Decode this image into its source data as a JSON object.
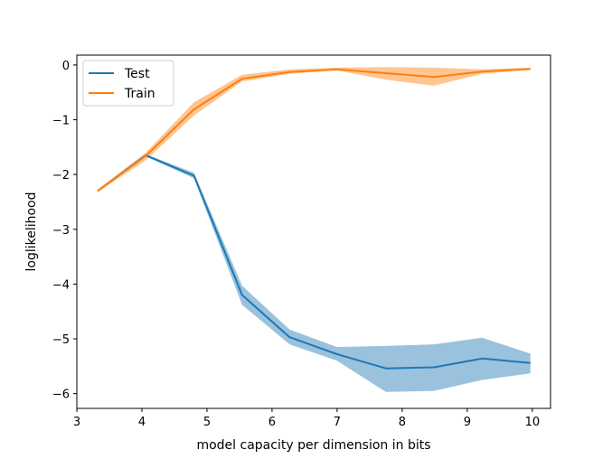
{
  "chart_data": {
    "type": "line",
    "title": "",
    "xlabel": "model capacity per dimension in bits",
    "ylabel": "loglikelihood",
    "xlim": [
      3,
      10.28
    ],
    "ylim": [
      -6.27,
      0.18
    ],
    "x_ticks": [
      3,
      4,
      5,
      6,
      7,
      8,
      9,
      10
    ],
    "y_ticks": [
      0,
      -1,
      -2,
      -3,
      -4,
      -5,
      -6
    ],
    "x_tick_labels": [
      "3",
      "4",
      "5",
      "6",
      "7",
      "8",
      "9",
      "10"
    ],
    "y_tick_labels": [
      "0",
      "−1",
      "−2",
      "−3",
      "−4",
      "−5",
      "−6"
    ],
    "grid": false,
    "legend_position": "top-left",
    "x": [
      3.32,
      4.06,
      4.8,
      5.54,
      6.27,
      7.0,
      7.75,
      8.49,
      9.23,
      9.97
    ],
    "series": [
      {
        "name": "Test",
        "color": "#1f77b4",
        "values": [
          -2.3,
          -1.65,
          -2.02,
          -4.2,
          -4.97,
          -5.28,
          -5.54,
          -5.52,
          -5.36,
          -5.44
        ],
        "lower": [
          -2.32,
          -1.67,
          -2.07,
          -4.38,
          -5.1,
          -5.4,
          -5.97,
          -5.95,
          -5.75,
          -5.63
        ],
        "upper": [
          -2.28,
          -1.63,
          -1.97,
          -4.03,
          -4.83,
          -5.15,
          -5.13,
          -5.1,
          -4.98,
          -5.27
        ]
      },
      {
        "name": "Train",
        "color": "#ff7f0e",
        "values": [
          -2.3,
          -1.66,
          -0.81,
          -0.25,
          -0.13,
          -0.08,
          -0.15,
          -0.22,
          -0.12,
          -0.07
        ],
        "lower": [
          -2.32,
          -1.74,
          -0.92,
          -0.3,
          -0.16,
          -0.1,
          -0.27,
          -0.38,
          -0.16,
          -0.09
        ],
        "upper": [
          -2.28,
          -1.6,
          -0.68,
          -0.18,
          -0.08,
          -0.05,
          -0.04,
          -0.05,
          -0.08,
          -0.05
        ]
      }
    ]
  }
}
